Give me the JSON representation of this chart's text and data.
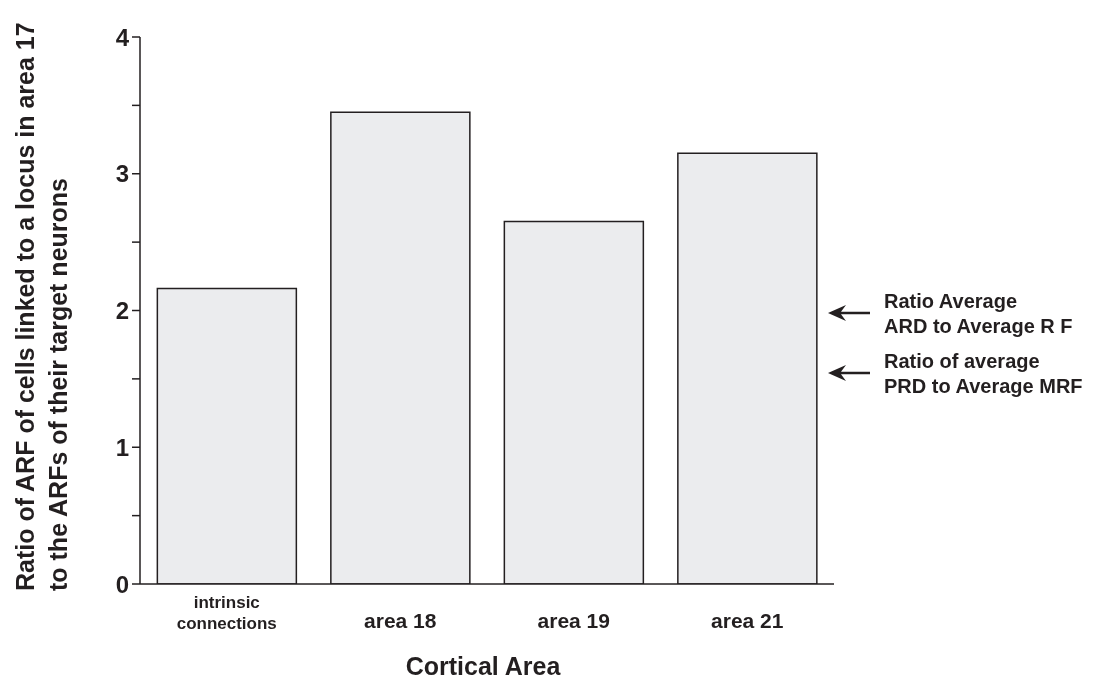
{
  "chart_data": {
    "type": "bar",
    "categories": [
      "intrinsic connections",
      "area 18",
      "area 19",
      "area 21"
    ],
    "values": [
      2.16,
      3.45,
      2.65,
      3.15
    ],
    "color": "#ebecee",
    "ylim": [
      0,
      4
    ],
    "yticks": [
      0,
      {
        "value": 0.5,
        "label": null
      },
      1,
      {
        "value": 1.5,
        "label": null
      },
      2,
      {
        "value": 2.5,
        "label": null
      },
      3,
      {
        "value": 3.5,
        "label": null
      },
      4
    ],
    "xlabel": "Cortical Area",
    "ylabel": "Ratio of ARF of cells linked to a locus in area 17\nto the ARFs of their target neurons",
    "annotations": [
      "Ratio Average\nARD to Average R F",
      "Ratio of average\nPRD to Average MRF"
    ]
  }
}
